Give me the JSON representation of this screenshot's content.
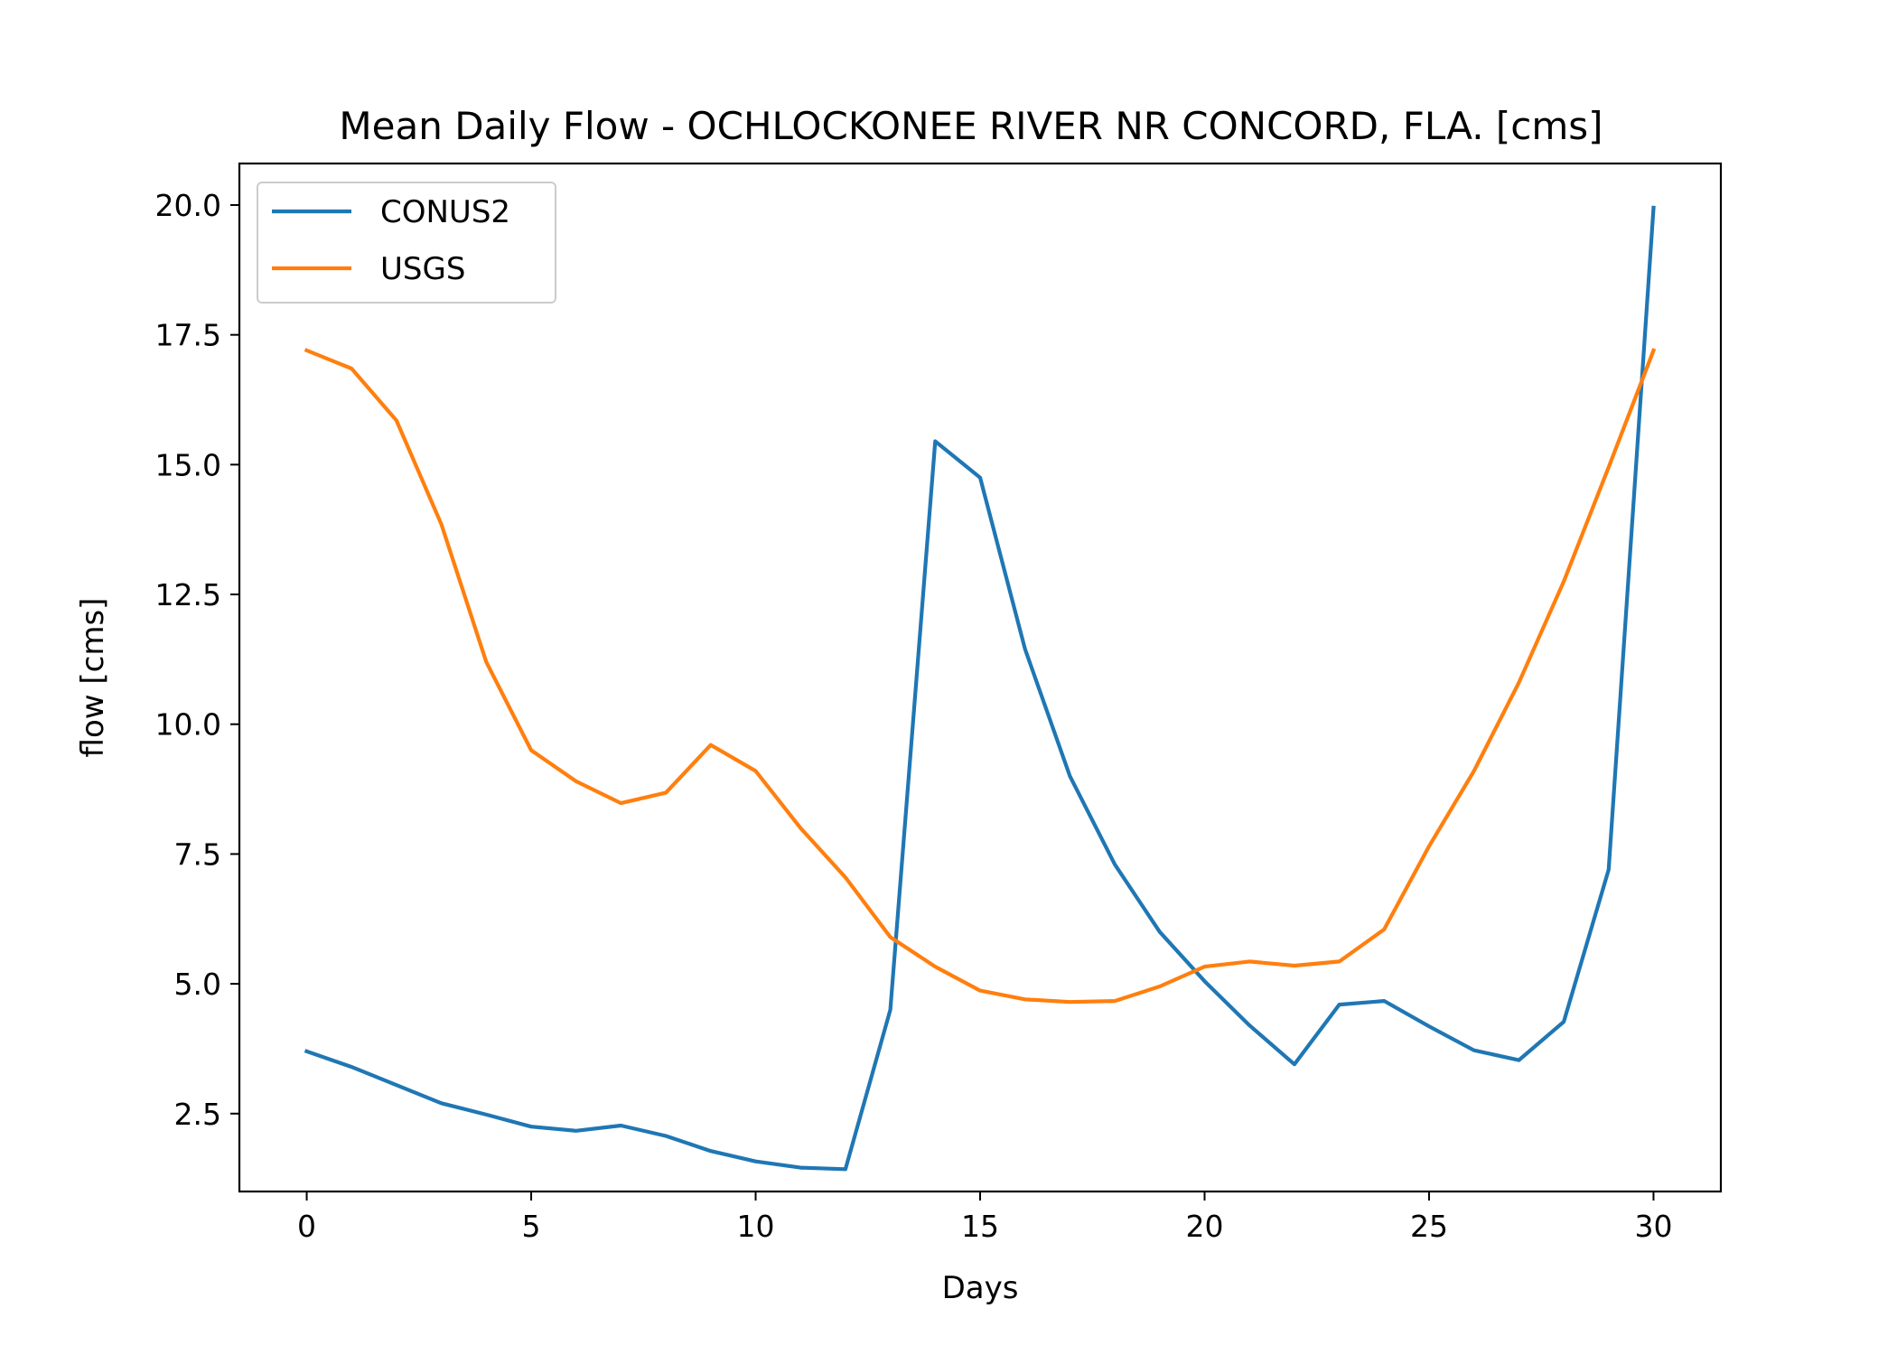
{
  "chart_data": {
    "type": "line",
    "title": "Mean Daily Flow - OCHLOCKONEE RIVER NR CONCORD, FLA. [cms]",
    "xlabel": "Days",
    "ylabel": "flow [cms]",
    "xlim": [
      -1.5,
      31.5
    ],
    "ylim": [
      1.0,
      20.8
    ],
    "xticks": [
      0,
      5,
      10,
      15,
      20,
      25,
      30
    ],
    "xtick_labels": [
      "0",
      "5",
      "10",
      "15",
      "20",
      "25",
      "30"
    ],
    "yticks": [
      2.5,
      5.0,
      7.5,
      10.0,
      12.5,
      15.0,
      17.5,
      20.0
    ],
    "ytick_labels": [
      "2.5",
      "5.0",
      "7.5",
      "10.0",
      "12.5",
      "15.0",
      "17.5",
      "20.0"
    ],
    "grid": false,
    "legend_position": "upper-left",
    "x": [
      0,
      1,
      2,
      3,
      4,
      5,
      6,
      7,
      8,
      9,
      10,
      11,
      12,
      13,
      14,
      15,
      16,
      17,
      18,
      19,
      20,
      21,
      22,
      23,
      24,
      25,
      26,
      27,
      28,
      29,
      30
    ],
    "series": [
      {
        "name": "CONUS2",
        "color": "#1f77b4",
        "values": [
          3.7,
          3.4,
          3.05,
          2.7,
          2.48,
          2.25,
          2.17,
          2.27,
          2.07,
          1.78,
          1.58,
          1.46,
          1.43,
          4.5,
          15.45,
          14.75,
          11.45,
          9.0,
          7.3,
          6.0,
          5.05,
          4.2,
          3.45,
          4.6,
          4.67,
          4.18,
          3.72,
          3.53,
          4.27,
          7.2,
          19.95
        ]
      },
      {
        "name": "USGS",
        "color": "#ff7f0e",
        "values": [
          17.2,
          16.85,
          15.85,
          13.85,
          11.2,
          9.5,
          8.9,
          8.48,
          8.68,
          9.6,
          9.1,
          8.0,
          7.05,
          5.9,
          5.33,
          4.87,
          4.7,
          4.65,
          4.67,
          4.95,
          5.33,
          5.43,
          5.35,
          5.43,
          6.05,
          7.65,
          9.1,
          10.8,
          12.75,
          14.95,
          17.2
        ]
      }
    ]
  }
}
